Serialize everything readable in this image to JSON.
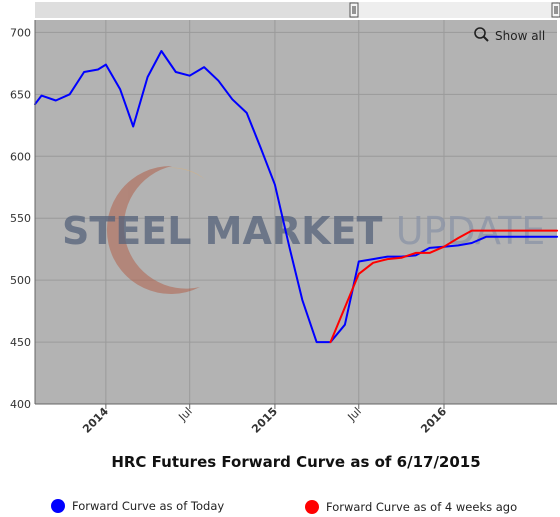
{
  "chart_data": {
    "type": "line",
    "title": "HRC Futures Forward Curve as of 6/17/2015",
    "xlabel": "",
    "ylabel": "",
    "ylim": [
      400,
      710
    ],
    "xlim": [
      "2013-08-01",
      "2016-09-01"
    ],
    "y_ticks": [
      400,
      450,
      500,
      550,
      600,
      650,
      700
    ],
    "x_ticks": [
      {
        "date": "2014-01-01",
        "label": "2014",
        "bold": true
      },
      {
        "date": "2014-07-01",
        "label": "Jul",
        "bold": false
      },
      {
        "date": "2015-01-01",
        "label": "2015",
        "bold": true
      },
      {
        "date": "2015-07-01",
        "label": "Jul",
        "bold": false
      },
      {
        "date": "2016-01-01",
        "label": "2016",
        "bold": true
      }
    ],
    "grid": true,
    "legend_position": "bottom",
    "series": [
      {
        "name": "Forward Curve as of Today",
        "color": "#0000ff",
        "points": [
          [
            "2013-08-01",
            642
          ],
          [
            "2013-08-15",
            649
          ],
          [
            "2013-09-15",
            645
          ],
          [
            "2013-10-15",
            650
          ],
          [
            "2013-11-15",
            668
          ],
          [
            "2013-12-15",
            670
          ],
          [
            "2014-01-01",
            674
          ],
          [
            "2014-02-01",
            654
          ],
          [
            "2014-03-01",
            624
          ],
          [
            "2014-04-01",
            664
          ],
          [
            "2014-05-01",
            685
          ],
          [
            "2014-06-01",
            668
          ],
          [
            "2014-07-01",
            665
          ],
          [
            "2014-08-01",
            672
          ],
          [
            "2014-09-01",
            661
          ],
          [
            "2014-10-01",
            646
          ],
          [
            "2014-11-01",
            635
          ],
          [
            "2014-12-01",
            607
          ],
          [
            "2015-01-01",
            577
          ],
          [
            "2015-02-01",
            527
          ],
          [
            "2015-03-01",
            484
          ],
          [
            "2015-04-01",
            450
          ],
          [
            "2015-05-01",
            450
          ],
          [
            "2015-06-01",
            464
          ],
          [
            "2015-07-01",
            515
          ],
          [
            "2015-08-01",
            517
          ],
          [
            "2015-09-01",
            519
          ],
          [
            "2015-10-01",
            519
          ],
          [
            "2015-11-01",
            520
          ],
          [
            "2015-12-01",
            526
          ],
          [
            "2016-01-01",
            527
          ],
          [
            "2016-02-01",
            528
          ],
          [
            "2016-03-01",
            530
          ],
          [
            "2016-04-01",
            535
          ],
          [
            "2016-05-01",
            535
          ],
          [
            "2016-06-01",
            535
          ],
          [
            "2016-07-01",
            535
          ],
          [
            "2016-08-01",
            535
          ],
          [
            "2016-09-01",
            535
          ]
        ]
      },
      {
        "name": "Forward Curve as of 4 weeks ago",
        "color": "#ff0000",
        "points": [
          [
            "2015-05-01",
            450
          ],
          [
            "2015-06-01",
            478
          ],
          [
            "2015-07-01",
            505
          ],
          [
            "2015-08-01",
            514
          ],
          [
            "2015-09-01",
            517
          ],
          [
            "2015-10-01",
            518
          ],
          [
            "2015-11-01",
            522
          ],
          [
            "2015-12-01",
            522
          ],
          [
            "2016-01-01",
            527
          ],
          [
            "2016-02-01",
            534
          ],
          [
            "2016-03-01",
            540
          ],
          [
            "2016-04-01",
            540
          ],
          [
            "2016-05-01",
            540
          ],
          [
            "2016-06-01",
            540
          ],
          [
            "2016-07-01",
            540
          ],
          [
            "2016-08-01",
            540
          ],
          [
            "2016-09-01",
            540
          ]
        ]
      }
    ]
  },
  "ui": {
    "show_all_label": "Show all",
    "watermark_part1": "STEEL",
    "watermark_part2": "MARKET",
    "watermark_part3": "UPDATE"
  },
  "colors": {
    "plot_background": "#b3b3b3",
    "grid": "#9e9e9e",
    "navigator_background": "#d9d9d9",
    "navigator_mask": "#e9e9e9"
  }
}
